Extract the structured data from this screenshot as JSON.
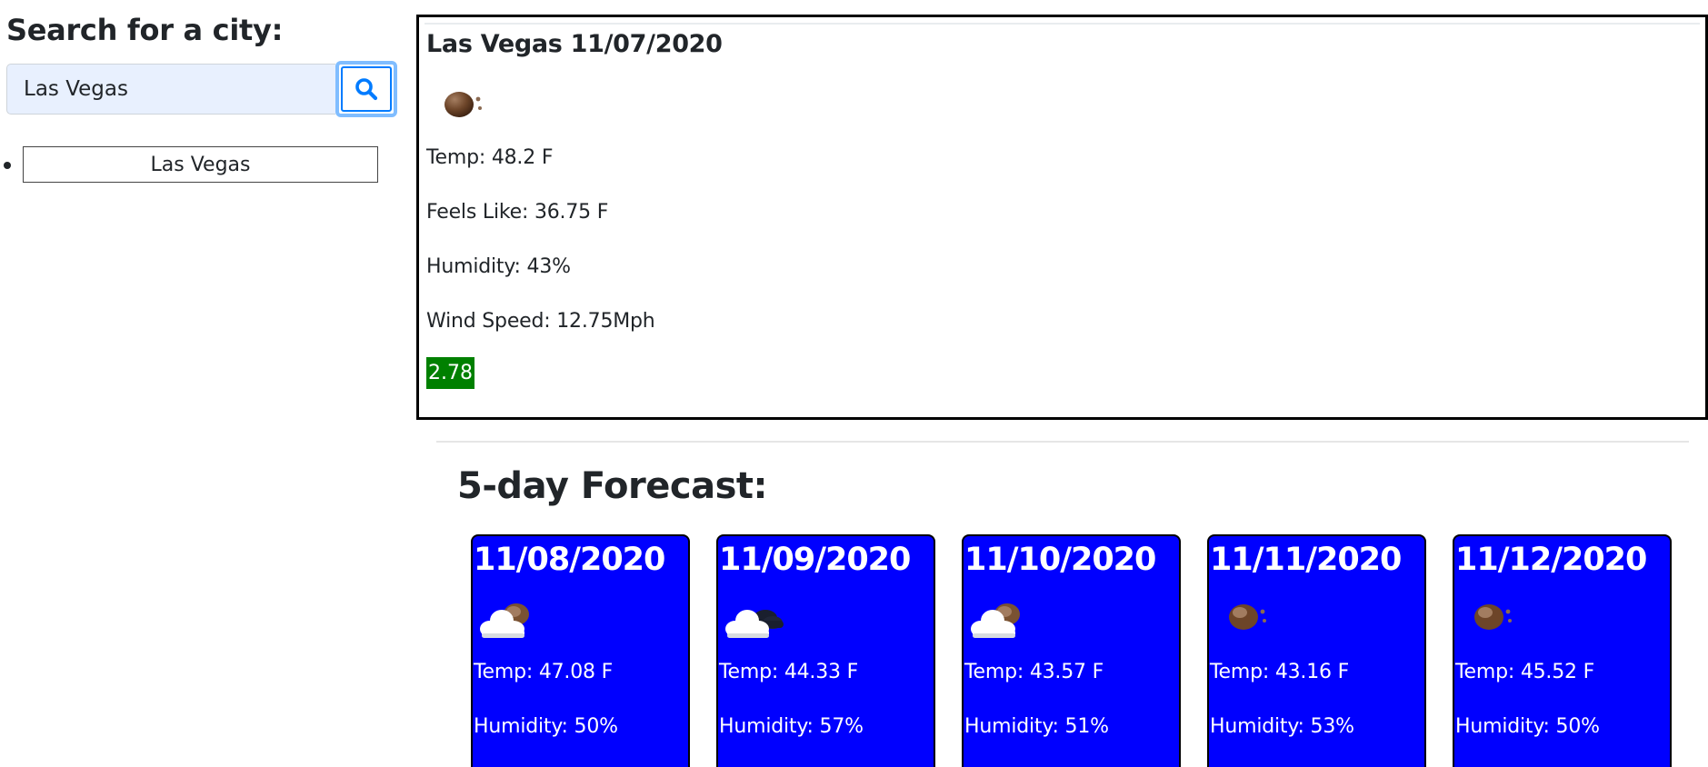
{
  "search": {
    "heading": "Search for a city:",
    "input_value": "Las Vegas"
  },
  "history": [
    {
      "label": "Las Vegas"
    }
  ],
  "current": {
    "title": "Las Vegas 11/07/2020",
    "icon": "moon-icon",
    "temp": "Temp: 48.2 F",
    "feels_like": "Feels Like: 36.75 F",
    "humidity": "Humidity: 43%",
    "wind": "Wind Speed: 12.75Mph",
    "uv_index": "2.78",
    "uv_color": "#008000"
  },
  "forecast": {
    "heading": "5-day Forecast:",
    "card_color": "#0000ff",
    "days": [
      {
        "date": "11/08/2020",
        "icon": "cloud-moon-icon",
        "temp": "Temp: 47.08 F",
        "humidity": "Humidity: 50%"
      },
      {
        "date": "11/09/2020",
        "icon": "cloud-dark-icon",
        "temp": "Temp: 44.33 F",
        "humidity": "Humidity: 57%"
      },
      {
        "date": "11/10/2020",
        "icon": "cloud-moon-icon",
        "temp": "Temp: 43.57 F",
        "humidity": "Humidity: 51%"
      },
      {
        "date": "11/11/2020",
        "icon": "moon-icon",
        "temp": "Temp: 43.16 F",
        "humidity": "Humidity: 53%"
      },
      {
        "date": "11/12/2020",
        "icon": "moon-icon",
        "temp": "Temp: 45.52 F",
        "humidity": "Humidity: 50%"
      }
    ]
  }
}
